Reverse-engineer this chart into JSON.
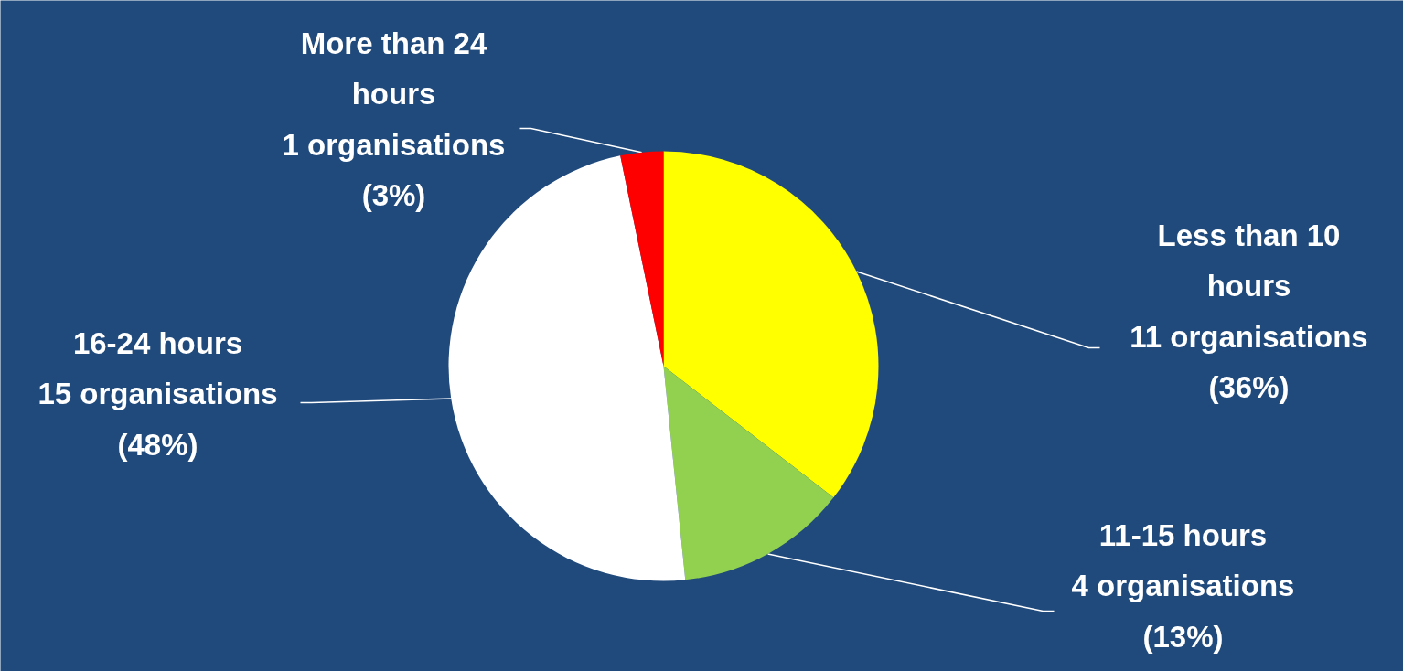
{
  "chart_data": {
    "type": "pie",
    "categories": [
      "Less than 10 hours",
      "11-15 hours",
      "16-24 hours",
      "More than 24 hours"
    ],
    "values": [
      11,
      4,
      15,
      1
    ],
    "colors": [
      "#ffff00",
      "#92d050",
      "#ffffff",
      "#ff0000"
    ],
    "value_labels": [
      "11 organisations (36%)",
      "4 organisations (13%)",
      "15 organisations (48%)",
      "1 organisations (3%)"
    ]
  }
}
